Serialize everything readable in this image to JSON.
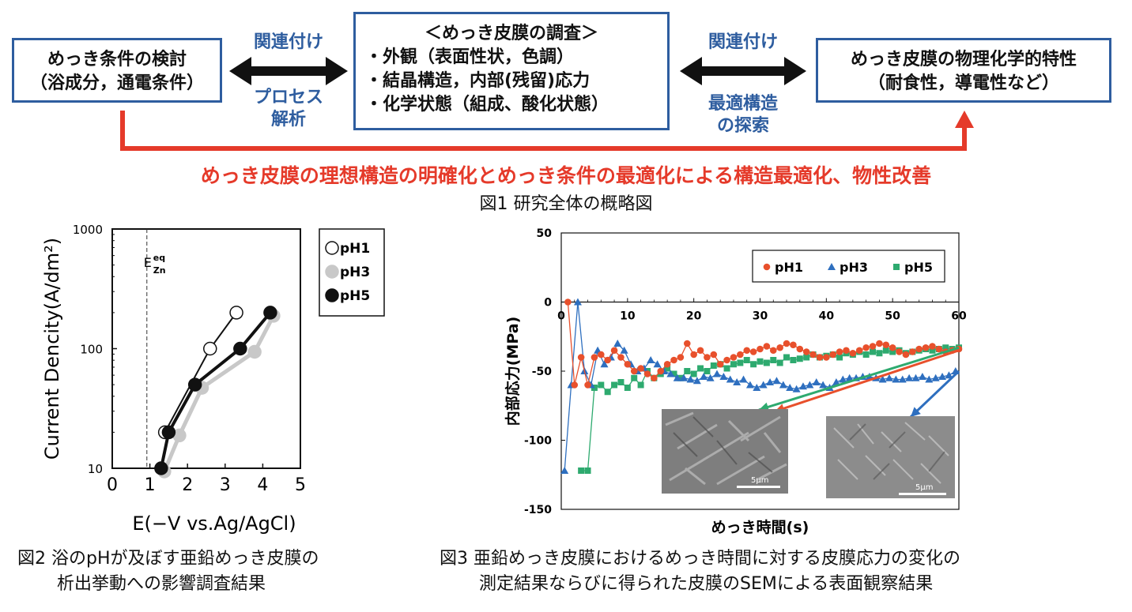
{
  "overview": {
    "box_left": [
      "めっき条件の検討",
      "（浴成分，通電条件）"
    ],
    "box_center": {
      "title": "＜めっき皮膜の調査＞",
      "items": [
        "・外観（表面性状，色調）",
        "・結晶構造，内部(残留)応力",
        "・化学状態（組成、酸化状態）"
      ]
    },
    "box_right": [
      "めっき皮膜の物理化学的特性",
      "（耐食性，導電性など）"
    ],
    "arrow_left_top": "関連付け",
    "arrow_left_bottom": [
      "プロセス",
      "解析"
    ],
    "arrow_right_top": "関連付け",
    "arrow_right_bottom": [
      "最適構造",
      "の探索"
    ],
    "red_message": "めっき皮膜の理想構造の明確化とめっき条件の最適化による構造最適化、物性改善",
    "fig1_caption": "図1 研究全体の概略図",
    "colors": {
      "box_border": "#2e5d9f",
      "arrow": "#111111",
      "red": "#e53a2a",
      "blue_text": "#2e5d9f"
    }
  },
  "fig2": {
    "caption_lines": [
      "図2 浴のpHが及ぼす亜鉛めっき皮膜の",
      "析出挙動への影響調査結果"
    ],
    "eq_label": "E",
    "eq_sup": "eq",
    "eq_sub": "Zn"
  },
  "fig3": {
    "caption_lines": [
      "図3 亜鉛めっき皮膜におけるめっき時間に対する皮膜応力の変化の",
      "測定結果ならびに得られた皮膜のSEMによる表面観察結果"
    ],
    "scale_bar": "5μm"
  },
  "chart_data": [
    {
      "type": "line",
      "xlabel": "E(−V vs.Ag/AgCl)",
      "ylabel": "Current Dencity(A/dm²)",
      "xlim": [
        0,
        5
      ],
      "ylim": [
        10,
        1000
      ],
      "y_scale": "log",
      "x_ticks": [
        "0",
        "1",
        "2",
        "3",
        "4",
        "5"
      ],
      "y_ticks": [
        "10",
        "100",
        "1000"
      ],
      "reference_line_x": 0.92,
      "legend_placement": "right",
      "series": [
        {
          "name": "pH1",
          "marker": "open-circle",
          "color": "#000000",
          "x": [
            1.4,
            2.6,
            3.3
          ],
          "y": [
            20,
            100,
            200
          ]
        },
        {
          "name": "pH3",
          "marker": "gray-circle",
          "color": "#c8c8c8",
          "x": [
            1.3,
            1.7,
            2.3,
            3.7,
            4.2
          ],
          "y": [
            10,
            20,
            50,
            100,
            200
          ]
        },
        {
          "name": "pH5",
          "marker": "filled-circle",
          "color": "#000000",
          "x": [
            1.3,
            1.5,
            2.2,
            3.4,
            4.2
          ],
          "y": [
            10,
            20,
            50,
            100,
            200
          ]
        }
      ]
    },
    {
      "type": "line",
      "xlabel": "めっき時間(s)",
      "ylabel": "内部応力(MPa)",
      "xlim": [
        0,
        60
      ],
      "ylim": [
        -150,
        50
      ],
      "x_ticks": [
        "0",
        "10",
        "20",
        "30",
        "40",
        "50",
        "60"
      ],
      "y_ticks": [
        "50",
        "0",
        "-50",
        "-100",
        "-150"
      ],
      "legend_placement": "top-right",
      "series": [
        {
          "name": "pH1",
          "color": "#e8502c",
          "marker": "circle",
          "x": [
            1,
            2,
            3,
            4,
            5,
            6,
            7,
            8,
            9,
            10,
            11,
            12,
            13,
            14,
            15,
            16,
            17,
            18,
            19,
            20,
            21,
            22,
            23,
            24,
            25,
            26,
            27,
            28,
            29,
            30,
            31,
            32,
            33,
            34,
            35,
            36,
            37,
            38,
            39,
            40,
            41,
            42,
            43,
            44,
            45,
            46,
            47,
            48,
            49,
            50,
            51,
            52,
            53,
            54,
            55,
            56,
            57,
            58,
            59,
            60
          ],
          "y": [
            0,
            -60,
            -40,
            -60,
            -40,
            -38,
            -42,
            -35,
            -40,
            -45,
            -50,
            -48,
            -52,
            -55,
            -50,
            -45,
            -42,
            -40,
            -30,
            -38,
            -35,
            -40,
            -38,
            -45,
            -42,
            -40,
            -38,
            -35,
            -36,
            -34,
            -32,
            -35,
            -33,
            -30,
            -31,
            -34,
            -36,
            -38,
            -40,
            -40,
            -38,
            -36,
            -35,
            -37,
            -35,
            -33,
            -32,
            -30,
            -31,
            -33,
            -36,
            -38,
            -36,
            -34,
            -33,
            -32,
            -34,
            -36,
            -35,
            -34
          ]
        },
        {
          "name": "pH3",
          "color": "#2e6fbf",
          "marker": "triangle",
          "x": [
            0.5,
            1.5,
            2.5,
            3.5,
            4.5,
            5.5,
            6.5,
            7.5,
            8.5,
            9.5,
            10.5,
            11.5,
            12.5,
            13.5,
            14.5,
            15.5,
            16.5,
            17.5,
            18.5,
            19.5,
            20.5,
            21.5,
            22.5,
            23.5,
            24.5,
            25.5,
            26.5,
            27.5,
            28.5,
            29.5,
            30.5,
            31.5,
            32.5,
            33.5,
            34.5,
            35.5,
            36.5,
            37.5,
            38.5,
            39.5,
            40.5,
            41.5,
            42.5,
            43.5,
            44.5,
            45.5,
            46.5,
            47.5,
            48.5,
            49.5,
            50.5,
            51.5,
            52.5,
            53.5,
            54.5,
            55.5,
            56.5,
            57.5,
            58.5,
            59.5
          ],
          "y": [
            -122,
            -60,
            0,
            -50,
            -60,
            -35,
            -45,
            -40,
            -30,
            -35,
            -45,
            -50,
            -48,
            -42,
            -45,
            -50,
            -52,
            -55,
            -55,
            -56,
            -57,
            -54,
            -55,
            -52,
            -54,
            -56,
            -58,
            -56,
            -60,
            -62,
            -60,
            -58,
            -57,
            -60,
            -62,
            -63,
            -61,
            -60,
            -58,
            -60,
            -62,
            -58,
            -56,
            -55,
            -55,
            -54,
            -54,
            -55,
            -56,
            -55,
            -56,
            -56,
            -55,
            -55,
            -54,
            -56,
            -55,
            -54,
            -53,
            -50
          ]
        },
        {
          "name": "pH5",
          "color": "#2eaa6f",
          "marker": "square",
          "x": [
            3,
            4,
            5,
            6,
            7,
            8,
            9,
            10,
            11,
            12,
            13,
            14,
            15,
            16,
            17,
            18,
            19,
            20,
            21,
            22,
            23,
            24,
            25,
            26,
            27,
            28,
            29,
            30,
            31,
            32,
            33,
            34,
            35,
            36,
            37,
            38,
            39,
            40,
            41,
            42,
            43,
            44,
            45,
            46,
            47,
            48,
            49,
            50,
            51,
            52,
            53,
            54,
            55,
            56,
            57,
            58,
            59,
            60
          ],
          "y": [
            -122,
            -122,
            -62,
            -60,
            -65,
            -60,
            -58,
            -62,
            -55,
            -60,
            -50,
            -55,
            -52,
            -48,
            -52,
            -55,
            -50,
            -52,
            -48,
            -50,
            -46,
            -45,
            -48,
            -45,
            -44,
            -42,
            -45,
            -43,
            -44,
            -42,
            -44,
            -40,
            -42,
            -41,
            -40,
            -38,
            -40,
            -39,
            -38,
            -40,
            -37,
            -38,
            -36,
            -38,
            -36,
            -37,
            -35,
            -36,
            -35,
            -37,
            -36,
            -35,
            -34,
            -35,
            -34,
            -33,
            -34,
            -33
          ]
        }
      ]
    }
  ]
}
